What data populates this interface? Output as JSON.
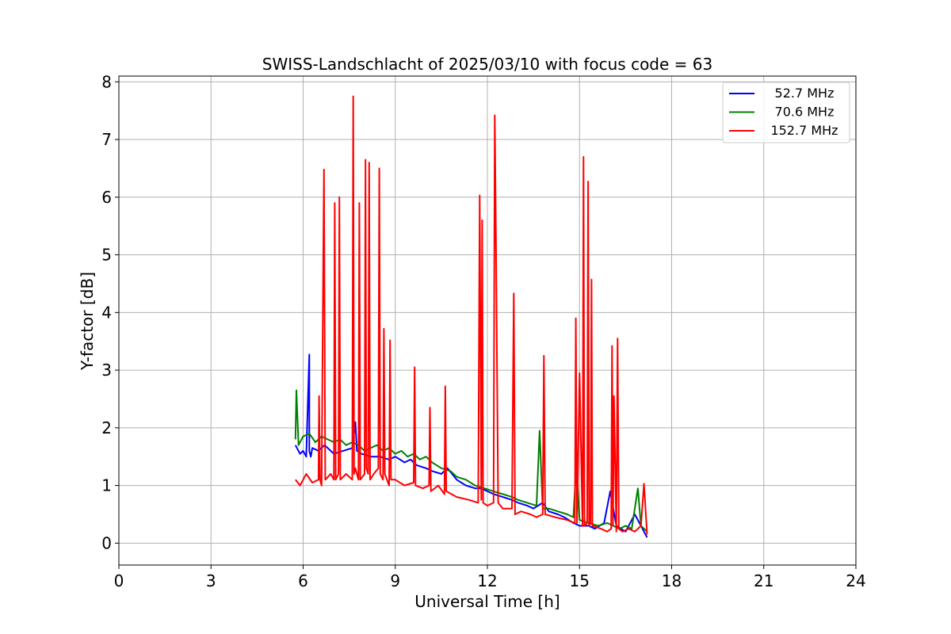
{
  "chart_data": {
    "type": "line",
    "title": "SWISS-Landschlacht of 2025/03/10 with focus code = 63",
    "xlabel": "Universal Time [h]",
    "ylabel": "Y-factor [dB]",
    "xlim": [
      0,
      24
    ],
    "ylim": [
      -0.38,
      8.1
    ],
    "xticks": [
      0,
      3,
      6,
      9,
      12,
      15,
      18,
      21,
      24
    ],
    "yticks": [
      0,
      1,
      2,
      3,
      4,
      5,
      6,
      7,
      8
    ],
    "grid": true,
    "legend_position": "top-right",
    "series": [
      {
        "name": "52.7 MHz",
        "color": "#0000ff",
        "x": [
          5.75,
          5.9,
          6.0,
          6.1,
          6.2,
          6.2,
          6.25,
          6.3,
          6.5,
          6.7,
          7.0,
          7.3,
          7.6,
          7.7,
          7.75,
          7.9,
          8.2,
          8.5,
          8.8,
          9.0,
          9.3,
          9.5,
          9.7,
          10.0,
          10.2,
          10.5,
          10.7,
          11.0,
          11.3,
          11.6,
          11.8,
          12.0,
          12.2,
          12.5,
          12.8,
          13.0,
          13.3,
          13.5,
          13.8,
          14.0,
          14.3,
          14.5,
          14.8,
          15.0,
          15.3,
          15.5,
          15.8,
          16.0,
          16.2,
          16.5,
          16.8,
          17.0,
          17.2
        ],
        "y": [
          1.7,
          1.55,
          1.6,
          1.5,
          3.27,
          1.6,
          1.5,
          1.65,
          1.6,
          1.7,
          1.55,
          1.6,
          1.65,
          2.1,
          1.6,
          1.55,
          1.5,
          1.5,
          1.45,
          1.5,
          1.4,
          1.45,
          1.35,
          1.3,
          1.25,
          1.2,
          1.3,
          1.1,
          1.0,
          0.95,
          0.95,
          0.9,
          0.85,
          0.8,
          0.75,
          0.7,
          0.65,
          0.6,
          0.7,
          0.55,
          0.5,
          0.45,
          0.35,
          0.3,
          0.3,
          0.25,
          0.35,
          0.9,
          0.3,
          0.2,
          0.5,
          0.3,
          0.1
        ]
      },
      {
        "name": "70.6 MHz",
        "color": "#008000",
        "x": [
          5.75,
          5.78,
          5.85,
          6.0,
          6.2,
          6.4,
          6.6,
          6.8,
          7.0,
          7.2,
          7.4,
          7.6,
          7.8,
          8.0,
          8.2,
          8.4,
          8.6,
          8.8,
          9.0,
          9.2,
          9.4,
          9.6,
          9.8,
          10.0,
          10.2,
          10.5,
          10.8,
          11.0,
          11.3,
          11.6,
          11.9,
          12.2,
          12.5,
          12.8,
          13.0,
          13.3,
          13.6,
          13.7,
          13.8,
          14.0,
          14.3,
          14.6,
          14.8,
          14.9,
          15.0,
          15.3,
          15.6,
          15.9,
          16.1,
          16.3,
          16.5,
          16.7,
          16.9,
          17.0,
          17.2
        ],
        "y": [
          1.8,
          2.65,
          1.7,
          1.85,
          1.9,
          1.75,
          1.85,
          1.8,
          1.75,
          1.8,
          1.7,
          1.75,
          1.7,
          1.6,
          1.65,
          1.7,
          1.6,
          1.65,
          1.55,
          1.6,
          1.5,
          1.55,
          1.45,
          1.5,
          1.4,
          1.3,
          1.25,
          1.15,
          1.1,
          1.0,
          0.95,
          0.9,
          0.85,
          0.8,
          0.75,
          0.7,
          0.65,
          1.95,
          0.6,
          0.6,
          0.55,
          0.5,
          0.45,
          1.4,
          0.4,
          0.35,
          0.3,
          0.35,
          0.3,
          0.25,
          0.3,
          0.25,
          0.95,
          0.3,
          0.2
        ]
      },
      {
        "name": "152.7 MHz",
        "color": "#ff0000",
        "x": [
          5.75,
          5.9,
          6.1,
          6.3,
          6.5,
          6.52,
          6.55,
          6.6,
          6.65,
          6.68,
          6.72,
          6.9,
          7.0,
          7.03,
          7.06,
          7.15,
          7.18,
          7.21,
          7.4,
          7.6,
          7.63,
          7.66,
          7.7,
          7.8,
          7.83,
          7.86,
          8.0,
          8.03,
          8.06,
          8.12,
          8.15,
          8.18,
          8.3,
          8.45,
          8.48,
          8.51,
          8.6,
          8.63,
          8.66,
          8.8,
          8.83,
          8.86,
          9.0,
          9.3,
          9.6,
          9.63,
          9.66,
          9.9,
          10.1,
          10.13,
          10.16,
          10.4,
          10.6,
          10.63,
          10.66,
          11.0,
          11.4,
          11.7,
          11.75,
          11.8,
          11.83,
          11.86,
          12.0,
          12.2,
          12.24,
          12.28,
          12.35,
          12.5,
          12.8,
          12.86,
          12.9,
          13.1,
          13.4,
          13.6,
          13.8,
          13.84,
          13.88,
          14.2,
          14.6,
          14.85,
          14.88,
          14.92,
          15.0,
          15.1,
          15.13,
          15.16,
          15.25,
          15.28,
          15.31,
          15.36,
          15.39,
          15.42,
          15.7,
          15.9,
          16.03,
          16.06,
          16.09,
          16.12,
          16.2,
          16.24,
          16.28,
          16.4,
          16.6,
          16.8,
          17.0,
          17.1,
          17.2
        ],
        "y": [
          1.1,
          1.0,
          1.2,
          1.05,
          1.1,
          2.55,
          1.1,
          1.0,
          4.55,
          6.48,
          1.1,
          1.2,
          1.1,
          5.9,
          1.1,
          1.2,
          6.0,
          1.1,
          1.2,
          1.1,
          7.75,
          1.2,
          1.3,
          1.1,
          5.9,
          1.1,
          1.2,
          6.65,
          1.3,
          1.2,
          6.6,
          1.1,
          1.2,
          1.3,
          6.5,
          1.2,
          1.1,
          3.72,
          1.2,
          1.0,
          3.52,
          1.1,
          1.1,
          1.0,
          1.05,
          3.05,
          1.0,
          0.95,
          1.0,
          2.35,
          0.9,
          1.0,
          0.85,
          2.72,
          0.9,
          0.8,
          0.75,
          0.7,
          6.03,
          0.75,
          5.6,
          0.7,
          0.65,
          0.7,
          7.42,
          5.3,
          0.7,
          0.6,
          0.6,
          4.33,
          0.5,
          0.55,
          0.5,
          0.45,
          0.5,
          3.25,
          0.5,
          0.45,
          0.4,
          0.35,
          3.9,
          0.35,
          2.95,
          0.3,
          6.7,
          0.3,
          0.35,
          6.27,
          0.3,
          0.35,
          4.57,
          0.3,
          0.25,
          0.2,
          0.25,
          3.42,
          0.3,
          2.55,
          0.2,
          3.55,
          0.25,
          0.2,
          0.25,
          0.2,
          0.3,
          1.03,
          0.15
        ]
      }
    ]
  }
}
